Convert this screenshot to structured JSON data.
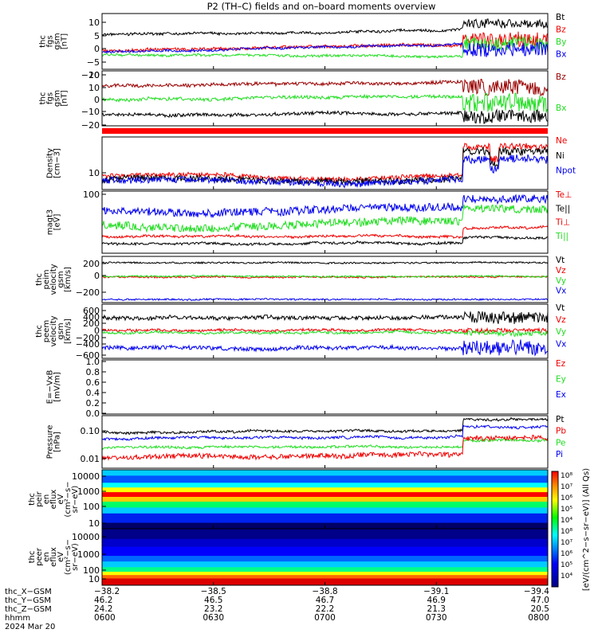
{
  "title": "P2 (TH–C) fields and on–board moments overview",
  "colors": {
    "black": "#000000",
    "red": "#ee0000",
    "green": "#22dd22",
    "blue": "#0000ee",
    "darkred": "#990000",
    "bar": "#ff0000"
  },
  "panels": [
    {
      "id": "fgs-gsm",
      "ylabel": [
        "thc",
        "fgs",
        "gsm",
        "[nT]"
      ],
      "ticks": [
        "10",
        "5",
        "0",
        "−5",
        "−10"
      ],
      "ylim": [
        -12,
        13
      ],
      "legend": [
        {
          "text": "Bt",
          "color": "#000000"
        },
        {
          "text": "Bz",
          "color": "#ee0000"
        },
        {
          "text": "By",
          "color": "#22dd22"
        },
        {
          "text": "Bx",
          "color": "#0000ee"
        }
      ]
    },
    {
      "id": "fgs-gsm-bz-bx",
      "ylabel": [
        "thc",
        "fgs",
        "gsm",
        "[nT]"
      ],
      "ticks": [
        "20",
        "10",
        "0",
        "−10",
        "−20"
      ],
      "ylim": [
        -24,
        23
      ],
      "legend": [
        {
          "text": "Bz",
          "color": "#990000"
        },
        {
          "text": "Bx",
          "color": "#22dd22"
        }
      ]
    },
    {
      "id": "density",
      "ylabel": [
        "Density",
        "[cm−3]"
      ],
      "ticks": [
        "10"
      ],
      "scale": "log",
      "legend": [
        {
          "text": "Ne",
          "color": "#ee0000"
        },
        {
          "text": "Ni",
          "color": "#000000"
        },
        {
          "text": "Npot",
          "color": "#0000ee"
        }
      ]
    },
    {
      "id": "temperature",
      "ylabel": [
        "magt3",
        "[eV]"
      ],
      "ticks": [
        "100"
      ],
      "scale": "log",
      "legend": [
        {
          "text": "Te⊥",
          "color": "#ee0000"
        },
        {
          "text": "Te||",
          "color": "#000000"
        },
        {
          "text": "Ti⊥",
          "color": "#ee0000"
        },
        {
          "text": "Ti||",
          "color": "#22dd22"
        }
      ]
    },
    {
      "id": "peim-velocity",
      "ylabel": [
        "thc",
        "peim",
        "velocity",
        "gsm",
        "[km/s]"
      ],
      "ticks": [
        "200",
        "0",
        "−200"
      ],
      "ylim": [
        -330,
        300
      ],
      "legend": [
        {
          "text": "Vt",
          "color": "#000000"
        },
        {
          "text": "Vz",
          "color": "#ee0000"
        },
        {
          "text": "Vy",
          "color": "#22dd22"
        },
        {
          "text": "Vx",
          "color": "#0000ee"
        }
      ]
    },
    {
      "id": "peem-velocity",
      "ylabel": [
        "thc",
        "peem",
        "velocity",
        "gsm",
        "[km/s]"
      ],
      "ticks": [
        "600",
        "400",
        "200",
        "0",
        "−200",
        "−400",
        "−600"
      ],
      "ylim": [
        -680,
        680
      ],
      "legend": [
        {
          "text": "Vt",
          "color": "#000000"
        },
        {
          "text": "Vz",
          "color": "#ee0000"
        },
        {
          "text": "Vy",
          "color": "#22dd22"
        },
        {
          "text": "Vx",
          "color": "#0000ee"
        }
      ]
    },
    {
      "id": "efield",
      "ylabel": [
        "E=−VxB",
        "[mV/m]"
      ],
      "ticks": [
        "1.0",
        "0.8",
        "0.6",
        "0.4",
        "0.2",
        "0.0"
      ],
      "ylim": [
        0,
        1
      ],
      "legend": [
        {
          "text": "Ez",
          "color": "#ee0000"
        },
        {
          "text": "Ey",
          "color": "#22dd22"
        },
        {
          "text": "Ex",
          "color": "#0000ee"
        }
      ]
    },
    {
      "id": "pressure",
      "ylabel": [
        "Pressure",
        "[nPa]"
      ],
      "ticks": [
        "0.10",
        "0.01"
      ],
      "scale": "log",
      "legend": [
        {
          "text": "Pt",
          "color": "#000000"
        },
        {
          "text": "Pb",
          "color": "#ee0000"
        },
        {
          "text": "Pe",
          "color": "#22dd22"
        },
        {
          "text": "Pi",
          "color": "#0000ee"
        }
      ]
    },
    {
      "id": "peir-spec",
      "ylabel": [
        "thc",
        "peir",
        "en",
        "eflux",
        "eV",
        "(cm²−s−",
        "sr−eV)"
      ],
      "ticks": [
        "10000",
        "1000",
        "100",
        "10"
      ],
      "scale": "log"
    },
    {
      "id": "peer-spec",
      "ylabel": [
        "thc",
        "peer",
        "en",
        "eflux",
        "eV",
        "(cm²−s−",
        "sr−eV)"
      ],
      "ticks": [
        "10000",
        "1000",
        "100",
        "10"
      ],
      "scale": "log"
    }
  ],
  "colorbar": {
    "label": "[eV/(cm^2−s−sr−eV)] (All Qs)",
    "ticks": [
      "10⁸",
      "10⁷",
      "10⁶",
      "10⁵",
      "10⁴"
    ]
  },
  "xaxis": {
    "row_labels": [
      "thc_X−GSM",
      "thc_Y−GSM",
      "thc_Z−GSM",
      "hhmm",
      "2024 Mar 20"
    ],
    "columns": [
      {
        "x": "−38.2",
        "y": "46.2",
        "z": "24.2",
        "hhmm": "0600"
      },
      {
        "x": "−38.5",
        "y": "46.5",
        "z": "23.2",
        "hhmm": "0630"
      },
      {
        "x": "−38.8",
        "y": "46.7",
        "z": "22.2",
        "hhmm": "0700"
      },
      {
        "x": "−39.1",
        "y": "46.9",
        "z": "21.3",
        "hhmm": "0730"
      },
      {
        "x": "−39.4",
        "y": "47.0",
        "z": "20.5",
        "hhmm": "0800"
      }
    ]
  },
  "chart_data": {
    "type": "line",
    "title": "P2 (TH–C) fields and on–board moments overview",
    "x": [
      "0600",
      "0630",
      "0700",
      "0730",
      "0800"
    ],
    "series": [
      {
        "name": "Bt",
        "values": [
          5,
          6,
          6,
          7,
          12
        ]
      },
      {
        "name": "Bz",
        "values": [
          1,
          3,
          4,
          3,
          8
        ]
      },
      {
        "name": "By",
        "values": [
          -4,
          -5,
          -4,
          -5,
          0
        ]
      },
      {
        "name": "Bx",
        "values": [
          -4,
          0,
          1,
          0,
          2
        ]
      },
      {
        "name": "Ne",
        "values": [
          8,
          11,
          10,
          9,
          40
        ]
      },
      {
        "name": "Ni",
        "values": [
          7,
          10,
          9,
          8,
          30
        ]
      },
      {
        "name": "Npot",
        "values": [
          6,
          8,
          8,
          7,
          20
        ]
      },
      {
        "name": "Vt",
        "values": [
          300,
          300,
          300,
          300,
          300
        ]
      },
      {
        "name": "Vx",
        "values": [
          -350,
          -340,
          -330,
          -330,
          -330
        ]
      },
      {
        "name": "Pt",
        "values": [
          0.08,
          0.09,
          0.09,
          0.1,
          0.3
        ]
      },
      {
        "name": "Pi",
        "values": [
          0.05,
          0.05,
          0.05,
          0.06,
          0.15
        ]
      },
      {
        "name": "Pe",
        "values": [
          0.02,
          0.02,
          0.02,
          0.025,
          0.08
        ]
      },
      {
        "name": "Pb",
        "values": [
          0.01,
          0.015,
          0.015,
          0.015,
          0.06
        ]
      }
    ]
  }
}
